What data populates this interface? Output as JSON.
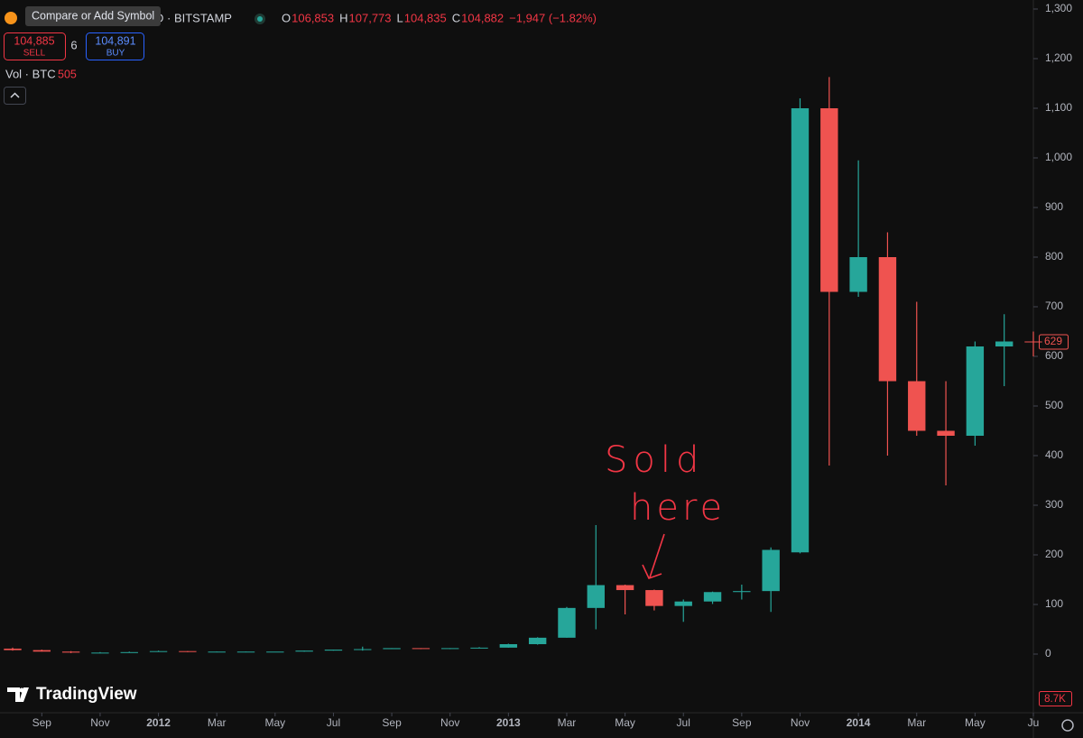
{
  "header": {
    "tooltip": "Compare or Add Symbol",
    "symbol": "D · BITSTAMP",
    "ohlc": [
      {
        "label": "O",
        "value": "106,853"
      },
      {
        "label": "H",
        "value": "107,773"
      },
      {
        "label": "L",
        "value": "104,835"
      },
      {
        "label": "C",
        "value": "104,882"
      }
    ],
    "change": "−1,947 (−1.82%)",
    "sell": {
      "price": "104,885",
      "label": "SELL"
    },
    "spread": "6",
    "buy": {
      "price": "104,891",
      "label": "BUY"
    },
    "volume": {
      "label": "Vol · BTC",
      "value": "505"
    },
    "volume_axis_label": "8.7K",
    "brand": "TradingView"
  },
  "chart_data": {
    "type": "candlestick",
    "x": [
      "2011-08",
      "2011-09",
      "2011-10",
      "2011-11",
      "2011-12",
      "2012-01",
      "2012-02",
      "2012-03",
      "2012-04",
      "2012-05",
      "2012-06",
      "2012-07",
      "2012-08",
      "2012-09",
      "2012-10",
      "2012-11",
      "2012-12",
      "2013-01",
      "2013-02",
      "2013-03",
      "2013-04",
      "2013-05",
      "2013-06",
      "2013-07",
      "2013-08",
      "2013-09",
      "2013-10",
      "2013-11",
      "2013-12",
      "2014-01",
      "2014-02",
      "2014-03",
      "2014-04",
      "2014-05",
      "2014-06",
      "2014-07"
    ],
    "open": [
      11,
      8,
      5,
      3,
      3,
      5,
      6,
      5,
      5,
      5,
      5,
      7,
      9,
      10,
      12,
      11,
      12,
      13,
      20,
      33,
      93,
      139,
      129,
      97,
      106,
      125,
      127,
      205,
      1100,
      730,
      800,
      550,
      450,
      440,
      620,
      630
    ],
    "high": [
      13,
      9,
      6,
      4,
      5,
      7,
      6,
      5,
      5,
      5,
      7,
      9,
      15,
      12,
      12,
      12,
      14,
      21,
      34,
      95,
      260,
      140,
      130,
      110,
      126,
      140,
      215,
      1120,
      1163,
      995,
      850,
      710,
      550,
      630,
      685,
      650
    ],
    "low": [
      7,
      5,
      2,
      2,
      3,
      5,
      4,
      4,
      4,
      5,
      5,
      7,
      7,
      10,
      10,
      10,
      12,
      13,
      19,
      33,
      50,
      80,
      88,
      65,
      101,
      110,
      85,
      203,
      380,
      720,
      400,
      440,
      340,
      420,
      540,
      600
    ],
    "close": [
      8,
      5,
      3,
      3,
      4,
      6,
      5,
      5,
      5,
      5,
      7,
      9,
      10,
      12,
      11,
      12,
      13,
      20,
      33,
      93,
      139,
      129,
      97,
      106,
      125,
      127,
      210,
      1100,
      730,
      800,
      550,
      450,
      440,
      620,
      630,
      629
    ],
    "up_color": "#26a69a",
    "down_color": "#ef5350",
    "xlim": [
      "2011-08",
      "2014-07"
    ],
    "xticks": [
      {
        "value": "2011-09",
        "label": "Sep"
      },
      {
        "value": "2011-11",
        "label": "Nov"
      },
      {
        "value": "2012-01",
        "label": "2012"
      },
      {
        "value": "2012-03",
        "label": "Mar"
      },
      {
        "value": "2012-05",
        "label": "May"
      },
      {
        "value": "2012-07",
        "label": "Jul"
      },
      {
        "value": "2012-09",
        "label": "Sep"
      },
      {
        "value": "2012-11",
        "label": "Nov"
      },
      {
        "value": "2013-01",
        "label": "2013"
      },
      {
        "value": "2013-03",
        "label": "Mar"
      },
      {
        "value": "2013-05",
        "label": "May"
      },
      {
        "value": "2013-07",
        "label": "Jul"
      },
      {
        "value": "2013-09",
        "label": "Sep"
      },
      {
        "value": "2013-11",
        "label": "Nov"
      },
      {
        "value": "2014-01",
        "label": "2014"
      },
      {
        "value": "2014-03",
        "label": "Mar"
      },
      {
        "value": "2014-05",
        "label": "May"
      },
      {
        "value": "2014-07",
        "label": "Ju"
      }
    ],
    "ylim": [
      -100,
      1300
    ],
    "yticks": [
      0,
      100,
      200,
      300,
      400,
      500,
      600,
      700,
      800,
      900,
      {
        "value": 1000,
        "label": "1,000"
      },
      {
        "value": 1100,
        "label": "1,100"
      },
      {
        "value": 1200,
        "label": "1,200"
      },
      {
        "value": 1300,
        "label": "1,300"
      }
    ],
    "grid": false,
    "annotation": [
      "Sold",
      "here"
    ]
  }
}
